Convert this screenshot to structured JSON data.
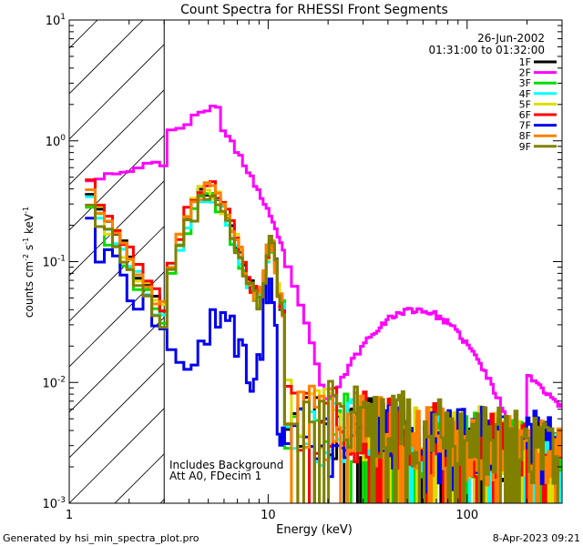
{
  "chart_data": {
    "type": "line",
    "title": "Count Spectra for RHESSI Front Segments",
    "xlabel": "Energy (keV)",
    "ylabel_base": "counts cm",
    "ylabel_exp1": "-2",
    "ylabel_mid": " s",
    "ylabel_exp2": "-1",
    "ylabel_mid2": " keV",
    "ylabel_exp3": "-1",
    "x_scale": "log",
    "y_scale": "log",
    "xlim": [
      1,
      300
    ],
    "ylim": [
      0.001,
      10
    ],
    "x_ticks": [
      {
        "value": 1,
        "label": "1"
      },
      {
        "value": 10,
        "label": "10"
      },
      {
        "value": 100,
        "label": "100"
      }
    ],
    "y_ticks": [
      {
        "value": 10,
        "base": "10",
        "exp": "1"
      },
      {
        "value": 1,
        "base": "10",
        "exp": "0"
      },
      {
        "value": 0.1,
        "base": "10",
        "exp": "-1"
      },
      {
        "value": 0.01,
        "base": "10",
        "exp": "-2"
      },
      {
        "value": 0.001,
        "base": "10",
        "exp": "-3"
      }
    ],
    "date": "26-Jun-2002",
    "time_range": "01:31:00 to 01:32:00",
    "annotation_line1": "Includes Background",
    "annotation_line2": "Att A0, FDecim 1",
    "hatched_region_keV": [
      1,
      3
    ],
    "footer_left": "Generated by hsi_min_spectra_plot.pro",
    "footer_right": "8-Apr-2023 09:21",
    "series": [
      {
        "name": "1F",
        "color": "#000000",
        "scale": 1.0,
        "bg_scale": 1.0,
        "seed": 11
      },
      {
        "name": "2F",
        "color": "#ff00ff",
        "scale": 1.0,
        "bg_scale": 1.0,
        "seed": 23
      },
      {
        "name": "3F",
        "color": "#00dd00",
        "scale": 0.78,
        "bg_scale": 0.95,
        "seed": 37
      },
      {
        "name": "4F",
        "color": "#00ffff",
        "scale": 0.85,
        "bg_scale": 0.9,
        "seed": 41
      },
      {
        "name": "5F",
        "color": "#dddd00",
        "scale": 0.95,
        "bg_scale": 1.1,
        "seed": 53
      },
      {
        "name": "6F",
        "color": "#ff0000",
        "scale": 1.12,
        "bg_scale": 1.05,
        "seed": 67
      },
      {
        "name": "7F",
        "color": "#0000ee",
        "scale": 1.0,
        "bg_scale": 1.0,
        "seed": 71
      },
      {
        "name": "8F",
        "color": "#ff8000",
        "scale": 1.02,
        "bg_scale": 1.0,
        "seed": 83
      },
      {
        "name": "9F",
        "color": "#808000",
        "scale": 0.8,
        "bg_scale": 1.15,
        "seed": 97
      }
    ]
  }
}
